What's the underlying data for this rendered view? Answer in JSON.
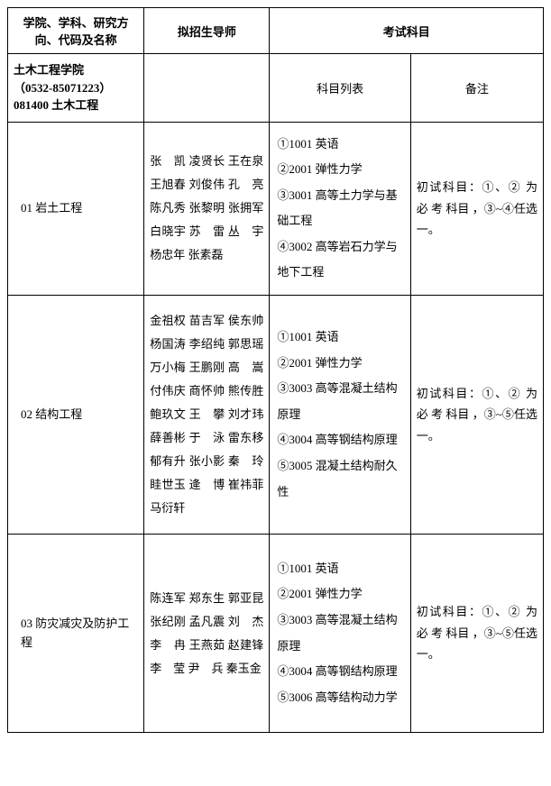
{
  "headers": {
    "col1": "学院、学科、研究方向、代码及名称",
    "col2": "拟招生导师",
    "col3_main": "考试科目",
    "col3_sub": "科目列表",
    "col4_sub": "备注"
  },
  "college": {
    "name": "土木工程学院",
    "phone": "（0532-85071223）",
    "major_code": "081400 土木工程"
  },
  "rows": [
    {
      "direction": "01 岩土工程",
      "supervisors": "张　凯 凌贤长 王在泉 王旭春 刘俊伟 孔　亮 陈凡秀 张黎明 张拥军 白晓宇 苏　雷 丛　宇 杨忠年 张素磊",
      "subjects": "①1001 英语\n②2001 弹性力学\n③3001 高等土力学与基础工程\n④3002 高等岩石力学与地下工程",
      "remark": "初试科目：①、② 为 必 考 科目 ，③~④任选一。"
    },
    {
      "direction": "02 结构工程",
      "supervisors": "金祖权 苗吉军 侯东帅 杨国涛 李绍纯 郭思瑶 万小梅 王鹏刚 高　嵩 付伟庆 商怀帅 熊传胜 鲍玖文 王　攀 刘才玮 薛善彬 于　泳 雷东移 郁有升 张小影 秦　玲 眭世玉 逄　博 崔祎菲 马衍轩",
      "subjects": "①1001 英语\n②2001 弹性力学\n③3003 高等混凝土结构原理\n④3004 高等钢结构原理\n⑤3005 混凝土结构耐久性",
      "remark": "初试科目：①、② 为 必 考 科目 ，③~⑤任选一。"
    },
    {
      "direction": "03 防灾减灾及防护工程",
      "supervisors": "陈连军 郑东生 郭亚昆 张纪刚 孟凡震 刘　杰 李　冉 王燕茹 赵建锋 李　莹 尹　兵 秦玉金",
      "subjects": "①1001 英语\n②2001 弹性力学\n③3003 高等混凝土结构原理\n④3004 高等钢结构原理\n⑤3006 高等结构动力学",
      "remark": "初试科目：①、② 为 必 考 科目 ，③~⑤任选一。"
    }
  ]
}
